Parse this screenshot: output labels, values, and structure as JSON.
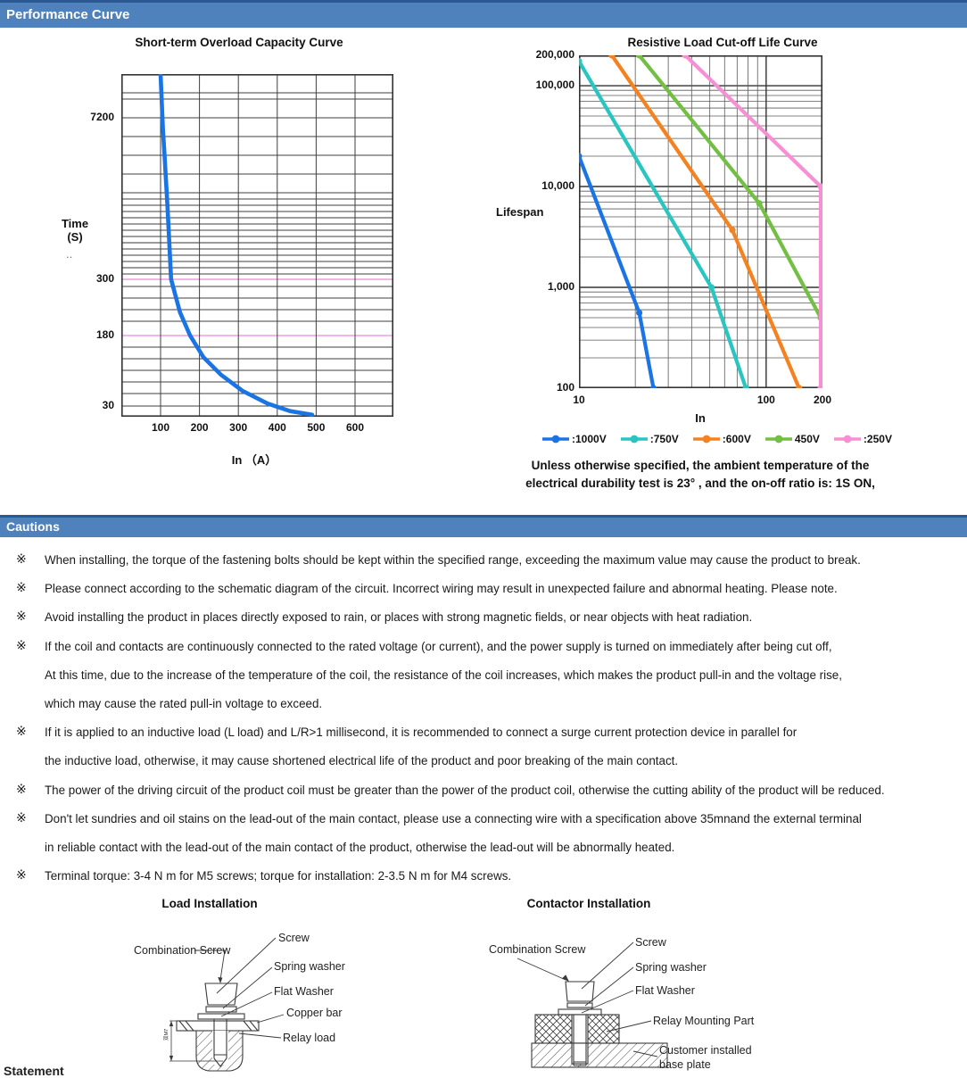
{
  "page": {
    "header1": "Performance Curve",
    "header2": "Cautions",
    "statement": "Statement"
  },
  "chart_data": [
    {
      "type": "line",
      "title": "Short-term Overload Capacity Curve",
      "ylabel": "Time (S)",
      "ylabel_lines": [
        "Time",
        "(S)"
      ],
      "xlabel": "In （A）",
      "axis_dots": "‥",
      "x_ticks": [
        100,
        200,
        300,
        400,
        500,
        600
      ],
      "y_ticks": [
        {
          "label": "7200",
          "value": 7200
        },
        {
          "label": "300",
          "value": 300
        },
        {
          "label": "180",
          "value": 180
        },
        {
          "label": "30",
          "value": 30
        }
      ],
      "highlighted_y_values": [
        300,
        180
      ],
      "x_range": [
        0,
        700
      ],
      "y_scale": "compressed-log",
      "grid": true,
      "series": [
        {
          "name": "overload-capacity",
          "color": "#1b74e4",
          "points": [
            [
              100,
              9500
            ],
            [
              106,
              5800
            ],
            [
              110,
              3500
            ],
            [
              118,
              1240
            ],
            [
              127,
              300
            ],
            [
              150,
              222
            ],
            [
              176,
              180
            ],
            [
              210,
              104
            ],
            [
              256,
              66
            ],
            [
              311,
              44
            ],
            [
              375,
              32
            ],
            [
              433,
              27
            ],
            [
              490,
              25
            ]
          ]
        }
      ]
    },
    {
      "type": "line",
      "title": "Resistive Load Cut-off Life Curve",
      "ylabel": "Lifespan",
      "xlabel": "In",
      "x_scale": "log",
      "y_scale": "log",
      "x_range": [
        10,
        200
      ],
      "y_range": [
        100,
        200000
      ],
      "grid": true,
      "legend_position": "bottom",
      "x_ticks": [
        {
          "label": "10",
          "value": 10
        },
        {
          "label": "100",
          "value": 100
        },
        {
          "label": "200",
          "value": 200
        }
      ],
      "y_ticks": [
        {
          "label": "200,000",
          "value": 200000
        },
        {
          "label": "100,000",
          "value": 100000
        },
        {
          "label": "10,000",
          "value": 10000
        },
        {
          "label": "1,000",
          "value": 1000
        },
        {
          "label": "100",
          "value": 100
        }
      ],
      "series": [
        {
          "name": ":1000V",
          "color": "#1b74e4",
          "points": [
            [
              10,
              20000
            ],
            [
              21,
              560
            ],
            [
              25,
              100
            ]
          ]
        },
        {
          "name": ":750V",
          "color": "#29c5c0",
          "points": [
            [
              10,
              175000
            ],
            [
              51,
              1000
            ],
            [
              78,
              100
            ]
          ]
        },
        {
          "name": ":600V",
          "color": "#f58220",
          "points": [
            [
              15,
              200000
            ],
            [
              66,
              3700
            ],
            [
              150,
              100
            ]
          ]
        },
        {
          "name": "450V",
          "color": "#72bf44",
          "points": [
            [
              21,
              200000
            ],
            [
              92,
              6800
            ],
            [
              197,
              500
            ]
          ]
        },
        {
          "name": ":250V",
          "color": "#f78fd5",
          "points": [
            [
              37,
              200000
            ],
            [
              200,
              10000
            ],
            [
              200,
              100
            ]
          ]
        }
      ]
    }
  ],
  "right_note": {
    "line1": "Unless otherwise specified, the ambient temperature of the",
    "line2": "electrical durability test is 23° , and the on-off ratio is: 1S ON,"
  },
  "cautions": {
    "marker": "※",
    "items": [
      {
        "lines": [
          "When installing, the torque of the fastening bolts should be kept within the specified range, exceeding the maximum value may cause the product to break."
        ]
      },
      {
        "lines": [
          "Please connect according to the schematic diagram of the circuit. Incorrect wiring may result in unexpected failure and abnormal heating. Please note."
        ]
      },
      {
        "lines": [
          "Avoid installing the product in places directly exposed to rain, or places with strong magnetic fields, or near objects with heat radiation."
        ]
      },
      {
        "lines": [
          "If the coil and contacts are continuously connected to the rated voltage (or current), and the power supply is turned on immediately after being cut off,",
          "At this time, due to the increase of the temperature of the coil, the resistance of the coil increases, which makes the product pull-in and the voltage rise,",
          "which may cause the rated pull-in voltage to exceed."
        ]
      },
      {
        "lines": [
          "If it is applied to an inductive load (L load) and L/R>1 millisecond, it is recommended to connect a surge current protection device in parallel for",
          "the inductive load, otherwise, it may cause shortened electrical life of the product and poor breaking of the main contact."
        ]
      },
      {
        "lines": [
          "The power of the driving circuit of the product coil must be greater than the power of the product coil, otherwise the cutting ability of the product will be reduced."
        ]
      },
      {
        "lines": [
          "Don't let sundries and oil stains on the lead-out of the main contact, please use a connecting wire with a specification above 35mnand the external terminal",
          "in reliable contact with the lead-out of the main contact of the product, otherwise the lead-out will be abnormally heated."
        ]
      },
      {
        "lines": [
          "Terminal torque: 3-4 N m for M5 screws; torque for installation: 2-3.5 N m for M4 screws."
        ]
      }
    ]
  },
  "diagrams": {
    "load": {
      "title": "Load Installation",
      "labels": {
        "combination_screw": "Combination Screw",
        "screw": "Screw",
        "spring_washer": "Spring washer",
        "flat_washer": "Flat Washer",
        "copper_bar": "Copper bar",
        "relay_load": "Relay load"
      },
      "dimension": "双M7"
    },
    "contactor": {
      "title": "Contactor Installation",
      "labels": {
        "combination_screw": "Combination Screw",
        "screw": "Screw",
        "spring_washer": "Spring washer",
        "flat_washer": "Flat Washer",
        "relay_mounting_part": "Relay Mounting Part",
        "customer_installed_line1": "Customer installed",
        "customer_installed_line2": "base plate"
      }
    }
  }
}
